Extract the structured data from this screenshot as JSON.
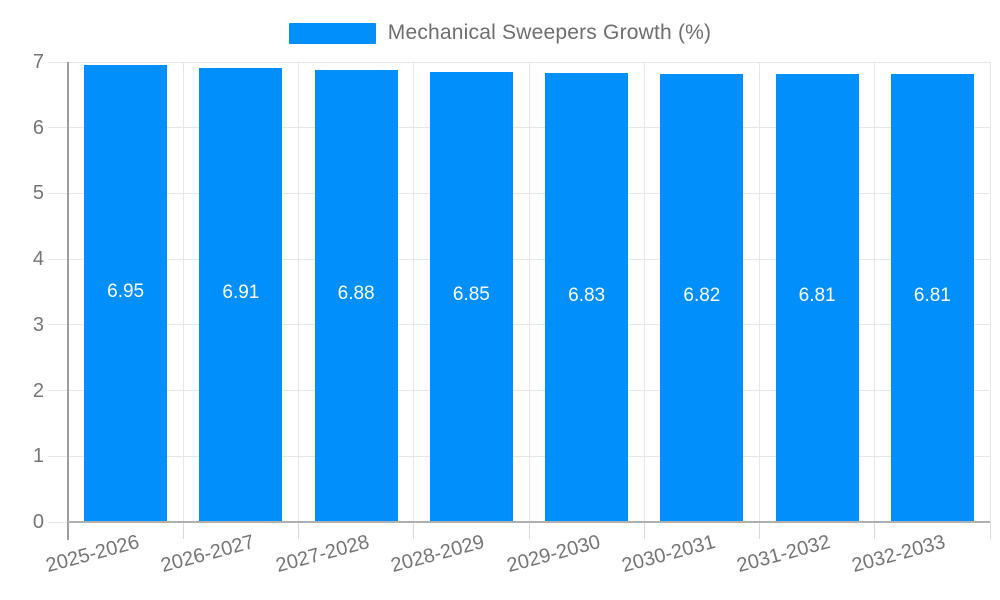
{
  "chart_data": {
    "type": "bar",
    "title": "Mechanical Sweepers Growth (%)",
    "series_name": "Mechanical Sweepers Growth (%)",
    "categories": [
      "2025-2026",
      "2026-2027",
      "2027-2028",
      "2028-2029",
      "2029-2030",
      "2030-2031",
      "2031-2032",
      "2032-2033"
    ],
    "values": [
      6.95,
      6.91,
      6.88,
      6.85,
      6.83,
      6.82,
      6.81,
      6.81
    ],
    "value_labels": [
      "6.95",
      "6.91",
      "6.88",
      "6.85",
      "6.83",
      "6.82",
      "6.81",
      "6.81"
    ],
    "xlabel": "",
    "ylabel": "",
    "ylim": [
      0,
      7
    ],
    "yticks": [
      0,
      1,
      2,
      3,
      4,
      5,
      6,
      7
    ],
    "grid": true,
    "legend_position": "top",
    "colors": {
      "bar": "#008ffb",
      "gridline": "#e7e7e7",
      "axis_x": "#b0b0b0",
      "axis_y": "#9e9e9e",
      "minor_tick": "#d9d9d9",
      "tick_label": "#757575",
      "data_label": "#ffffff",
      "legend_text": "#6e6e6e",
      "background": "#ffffff"
    }
  }
}
